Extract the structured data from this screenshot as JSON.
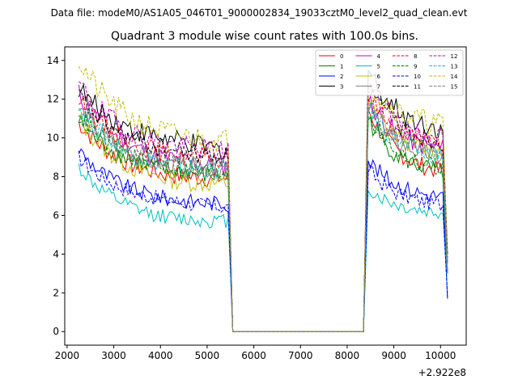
{
  "chart_data": {
    "type": "line",
    "suptitle": "Data file: modeM0/AS1A05_046T01_9000002834_19033cztM0_level2_quad_clean.evt",
    "title": "Quadrant 3 module wise count rates with 100.0s bins.",
    "xlabel": "",
    "ylabel": "",
    "x_offset_label": "+2.922e8",
    "xlim": [
      1950,
      10550
    ],
    "ylim": [
      -0.7,
      14.7
    ],
    "xticks": [
      2000,
      3000,
      4000,
      5000,
      6000,
      7000,
      8000,
      9000,
      10000
    ],
    "xtick_labels": [
      "2000",
      "3000",
      "4000",
      "5000",
      "6000",
      "7000",
      "8000",
      "9000",
      "10000"
    ],
    "yticks": [
      0,
      2,
      4,
      6,
      8,
      10,
      12,
      14
    ],
    "ytick_labels": [
      "0",
      "2",
      "4",
      "6",
      "8",
      "10",
      "12",
      "14"
    ],
    "grid": false,
    "legend_position": "top-right",
    "segments": {
      "seg1_start": 2250,
      "seg1_end": 5450,
      "drop_x": 5550,
      "gap_end": 8350,
      "seg2_start": 8450,
      "seg2_end": 10050,
      "final_x": 10150
    },
    "series": [
      {
        "name": "0",
        "color": "#ff0000",
        "dashed": false,
        "start": 10.8,
        "mid": 8.2,
        "end": 7.8,
        "seg2_start": 11.5,
        "seg2_end": 8.0,
        "final": 3.0
      },
      {
        "name": "1",
        "color": "#008000",
        "dashed": false,
        "start": 10.9,
        "mid": 8.5,
        "end": 7.9,
        "seg2_start": 11.0,
        "seg2_end": 8.0,
        "final": 3.0
      },
      {
        "name": "2",
        "color": "#0000ff",
        "dashed": false,
        "start": 9.4,
        "mid": 7.0,
        "end": 6.5,
        "seg2_start": 8.9,
        "seg2_end": 6.8,
        "final": 1.7
      },
      {
        "name": "3",
        "color": "#000000",
        "dashed": false,
        "start": 12.6,
        "mid": 10.3,
        "end": 9.2,
        "seg2_start": 13.6,
        "seg2_end": 10.2,
        "final": 4.0
      },
      {
        "name": "4",
        "color": "#bf00bf",
        "dashed": false,
        "start": 12.3,
        "mid": 9.2,
        "end": 8.4,
        "seg2_start": 12.0,
        "seg2_end": 9.2,
        "final": 3.5
      },
      {
        "name": "5",
        "color": "#00bfbf",
        "dashed": false,
        "start": 8.5,
        "mid": 6.0,
        "end": 5.6,
        "seg2_start": 7.4,
        "seg2_end": 6.0,
        "final": 2.0
      },
      {
        "name": "6",
        "color": "#bfbf00",
        "dashed": false,
        "start": 11.0,
        "mid": 8.0,
        "end": 7.5,
        "seg2_start": 12.0,
        "seg2_end": 9.0,
        "final": 3.0
      },
      {
        "name": "7",
        "color": "#808080",
        "dashed": false,
        "start": 11.5,
        "mid": 8.8,
        "end": 8.2,
        "seg2_start": 11.5,
        "seg2_end": 8.8,
        "final": 3.0
      },
      {
        "name": "8",
        "color": "#ff0000",
        "dashed": true,
        "start": 12.0,
        "mid": 9.4,
        "end": 8.7,
        "seg2_start": 12.3,
        "seg2_end": 9.4,
        "final": 3.5
      },
      {
        "name": "9",
        "color": "#008000",
        "dashed": true,
        "start": 11.2,
        "mid": 8.7,
        "end": 8.1,
        "seg2_start": 11.3,
        "seg2_end": 8.2,
        "final": 3.0
      },
      {
        "name": "10",
        "color": "#0000ff",
        "dashed": true,
        "start": 9.0,
        "mid": 7.0,
        "end": 6.3,
        "seg2_start": 8.4,
        "seg2_end": 6.4,
        "final": 1.8
      },
      {
        "name": "11",
        "color": "#000000",
        "dashed": true,
        "start": 12.2,
        "mid": 9.6,
        "end": 8.9,
        "seg2_start": 12.7,
        "seg2_end": 9.6,
        "final": 3.8
      },
      {
        "name": "12",
        "color": "#bf00bf",
        "dashed": true,
        "start": 12.8,
        "mid": 9.9,
        "end": 9.2,
        "seg2_start": 12.9,
        "seg2_end": 9.7,
        "final": 3.6
      },
      {
        "name": "13",
        "color": "#00bfbf",
        "dashed": true,
        "start": 11.6,
        "mid": 8.8,
        "end": 8.2,
        "seg2_start": 11.6,
        "seg2_end": 8.8,
        "final": 3.0
      },
      {
        "name": "14",
        "color": "#bfbf00",
        "dashed": true,
        "start": 14.0,
        "mid": 10.5,
        "end": 9.7,
        "seg2_start": 13.0,
        "seg2_end": 10.5,
        "final": 3.5
      },
      {
        "name": "15",
        "color": "#808080",
        "dashed": true,
        "start": 11.6,
        "mid": 8.9,
        "end": 8.4,
        "seg2_start": 11.9,
        "seg2_end": 8.9,
        "final": 3.0
      }
    ]
  }
}
